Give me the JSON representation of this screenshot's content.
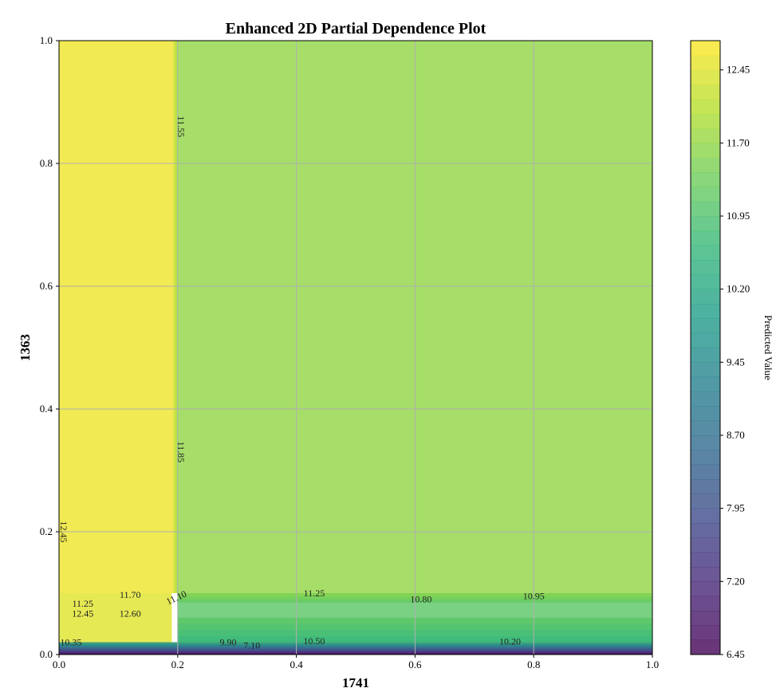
{
  "chart_data": {
    "type": "heatmap",
    "subtype": "filled-contour",
    "title": "Enhanced 2D Partial Dependence Plot",
    "xlabel": "1741",
    "ylabel": "1363",
    "xlim": [
      0.0,
      1.0
    ],
    "ylim": [
      0.0,
      1.0
    ],
    "x_ticks": [
      "0.0",
      "0.2",
      "0.4",
      "0.6",
      "0.8",
      "1.0"
    ],
    "y_ticks": [
      "0.0",
      "0.2",
      "0.4",
      "0.6",
      "0.8",
      "1.0"
    ],
    "grid": true,
    "colormap": "viridis",
    "colorbar": {
      "label": "Predicted Value",
      "min": 6.45,
      "max": 12.75,
      "ticks": [
        "6.45",
        "7.20",
        "7.95",
        "8.70",
        "9.45",
        "10.20",
        "10.95",
        "11.70",
        "12.45"
      ]
    },
    "regions": [
      {
        "x": [
          0.0,
          0.19
        ],
        "y": [
          0.1,
          1.0
        ],
        "value": 12.6
      },
      {
        "x": [
          0.2,
          1.0
        ],
        "y": [
          0.1,
          1.0
        ],
        "value": 11.7
      },
      {
        "x": [
          0.0,
          0.19
        ],
        "y": [
          0.02,
          0.1
        ],
        "value": 12.45
      },
      {
        "x": [
          0.2,
          1.0
        ],
        "y": [
          0.02,
          0.1
        ],
        "value": 11.1
      },
      {
        "x": [
          0.0,
          1.0
        ],
        "y": [
          0.0,
          0.02
        ],
        "value": 7.0
      }
    ],
    "contour_labels": [
      {
        "text": "11.85",
        "x": 0.2,
        "y": 0.33,
        "rotate": 90
      },
      {
        "text": "11.55",
        "x": 0.2,
        "y": 0.86,
        "rotate": 90
      },
      {
        "text": "12.45",
        "x": 0.003,
        "y": 0.2,
        "rotate": 90
      },
      {
        "text": "11.70",
        "x": 0.12,
        "y": 0.092,
        "rotate": 0
      },
      {
        "text": "11.10",
        "x": 0.2,
        "y": 0.088,
        "rotate": -25
      },
      {
        "text": "11.25",
        "x": 0.43,
        "y": 0.095,
        "rotate": 0
      },
      {
        "text": "10.80",
        "x": 0.61,
        "y": 0.085,
        "rotate": 0
      },
      {
        "text": "10.95",
        "x": 0.8,
        "y": 0.09,
        "rotate": 0
      },
      {
        "text": "12.60",
        "x": 0.12,
        "y": 0.062,
        "rotate": 0
      },
      {
        "text": "12.45",
        "x": 0.04,
        "y": 0.062,
        "rotate": 0
      },
      {
        "text": "11.25",
        "x": 0.04,
        "y": 0.078,
        "rotate": 0
      },
      {
        "text": "10.35",
        "x": 0.02,
        "y": 0.015,
        "rotate": 0
      },
      {
        "text": "10.50",
        "x": 0.43,
        "y": 0.017,
        "rotate": 0
      },
      {
        "text": "10.20",
        "x": 0.76,
        "y": 0.016,
        "rotate": 0
      },
      {
        "text": "9.90",
        "x": 0.285,
        "y": 0.015,
        "rotate": 0
      },
      {
        "text": "7.10",
        "x": 0.325,
        "y": 0.01,
        "rotate": 0
      }
    ]
  }
}
